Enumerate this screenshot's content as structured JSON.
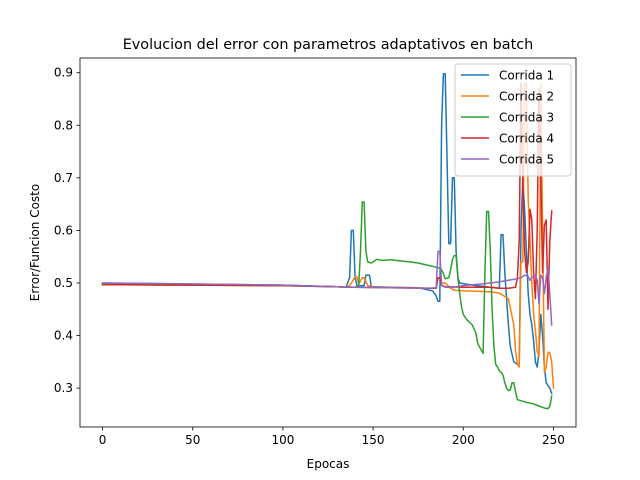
{
  "chart_data": {
    "type": "line",
    "title": "Evolucion del error con parametros adaptativos en batch",
    "xlabel": "Epocas",
    "ylabel": "Error/Funcion Costo",
    "xlim": [
      -12.5,
      262.5
    ],
    "ylim": [
      0.226,
      0.928
    ],
    "xticks": [
      0,
      50,
      100,
      150,
      200,
      250
    ],
    "yticks": [
      0.3,
      0.4,
      0.5,
      0.6,
      0.7,
      0.8,
      0.9
    ],
    "grid": false,
    "legend_position": "top-right",
    "series": [
      {
        "name": "Corrida 1",
        "color": "#1f77b4",
        "points": [
          [
            0,
            0.5
          ],
          [
            50,
            0.498
          ],
          [
            100,
            0.496
          ],
          [
            130,
            0.493
          ],
          [
            135,
            0.492
          ],
          [
            137,
            0.51
          ],
          [
            138,
            0.6
          ],
          [
            139,
            0.6
          ],
          [
            140,
            0.51
          ],
          [
            141,
            0.495
          ],
          [
            145,
            0.495
          ],
          [
            146,
            0.515
          ],
          [
            148,
            0.515
          ],
          [
            149,
            0.493
          ],
          [
            160,
            0.492
          ],
          [
            175,
            0.491
          ],
          [
            183,
            0.485
          ],
          [
            185,
            0.475
          ],
          [
            186,
            0.465
          ],
          [
            187,
            0.465
          ],
          [
            188,
            0.8
          ],
          [
            189,
            0.898
          ],
          [
            190,
            0.898
          ],
          [
            191,
            0.74
          ],
          [
            192,
            0.575
          ],
          [
            193,
            0.575
          ],
          [
            194,
            0.7
          ],
          [
            195,
            0.7
          ],
          [
            196,
            0.56
          ],
          [
            197,
            0.51
          ],
          [
            198,
            0.5
          ],
          [
            205,
            0.496
          ],
          [
            215,
            0.492
          ],
          [
            220,
            0.49
          ],
          [
            221,
            0.592
          ],
          [
            222,
            0.592
          ],
          [
            223,
            0.52
          ],
          [
            225,
            0.42
          ],
          [
            226,
            0.38
          ],
          [
            228,
            0.35
          ],
          [
            230,
            0.345
          ],
          [
            231,
            0.345
          ],
          [
            232,
            0.6
          ],
          [
            233,
            0.7
          ],
          [
            234,
            0.64
          ],
          [
            235,
            0.56
          ],
          [
            236,
            0.48
          ],
          [
            237,
            0.44
          ],
          [
            238,
            0.42
          ],
          [
            239,
            0.39
          ],
          [
            240,
            0.35
          ],
          [
            241,
            0.34
          ],
          [
            242,
            0.37
          ],
          [
            243,
            0.44
          ],
          [
            244,
            0.4
          ],
          [
            245,
            0.34
          ],
          [
            246,
            0.31
          ],
          [
            247,
            0.305
          ],
          [
            248,
            0.3
          ],
          [
            249,
            0.29
          ]
        ]
      },
      {
        "name": "Corrida 2",
        "color": "#ff7f0e",
        "points": [
          [
            0,
            0.497
          ],
          [
            50,
            0.496
          ],
          [
            100,
            0.495
          ],
          [
            130,
            0.493
          ],
          [
            136,
            0.492
          ],
          [
            138,
            0.5
          ],
          [
            140,
            0.512
          ],
          [
            141,
            0.512
          ],
          [
            142,
            0.498
          ],
          [
            144,
            0.51
          ],
          [
            145,
            0.51
          ],
          [
            147,
            0.495
          ],
          [
            150,
            0.492
          ],
          [
            170,
            0.491
          ],
          [
            185,
            0.49
          ],
          [
            186,
            0.51
          ],
          [
            187,
            0.51
          ],
          [
            188,
            0.5
          ],
          [
            190,
            0.5
          ],
          [
            193,
            0.49
          ],
          [
            195,
            0.486
          ],
          [
            200,
            0.485
          ],
          [
            210,
            0.484
          ],
          [
            215,
            0.483
          ],
          [
            220,
            0.481
          ],
          [
            225,
            0.47
          ],
          [
            228,
            0.42
          ],
          [
            229,
            0.37
          ],
          [
            230,
            0.345
          ],
          [
            231,
            0.34
          ],
          [
            232,
            0.54
          ],
          [
            233,
            0.54
          ],
          [
            234,
            0.88
          ],
          [
            235,
            0.88
          ],
          [
            236,
            0.66
          ],
          [
            237,
            0.58
          ],
          [
            238,
            0.5
          ],
          [
            239,
            0.44
          ],
          [
            240,
            0.41
          ],
          [
            241,
            0.37
          ],
          [
            242,
            0.36
          ],
          [
            243,
            0.88
          ],
          [
            244,
            0.6
          ],
          [
            245,
            0.33
          ],
          [
            246,
            0.34
          ],
          [
            247,
            0.368
          ],
          [
            248,
            0.368
          ],
          [
            249,
            0.35
          ],
          [
            250,
            0.3
          ]
        ]
      },
      {
        "name": "Corrida 3",
        "color": "#2ca02c",
        "points": [
          [
            0,
            0.497
          ],
          [
            50,
            0.496
          ],
          [
            100,
            0.495
          ],
          [
            130,
            0.493
          ],
          [
            138,
            0.492
          ],
          [
            140,
            0.492
          ],
          [
            142,
            0.495
          ],
          [
            143,
            0.56
          ],
          [
            144,
            0.654
          ],
          [
            145,
            0.654
          ],
          [
            146,
            0.56
          ],
          [
            147,
            0.54
          ],
          [
            149,
            0.538
          ],
          [
            150,
            0.54
          ],
          [
            152,
            0.545
          ],
          [
            155,
            0.543
          ],
          [
            160,
            0.544
          ],
          [
            165,
            0.542
          ],
          [
            170,
            0.54
          ],
          [
            175,
            0.538
          ],
          [
            180,
            0.534
          ],
          [
            185,
            0.53
          ],
          [
            187,
            0.528
          ],
          [
            188,
            0.525
          ],
          [
            189,
            0.518
          ],
          [
            190,
            0.508
          ],
          [
            192,
            0.51
          ],
          [
            193,
            0.525
          ],
          [
            194,
            0.545
          ],
          [
            195,
            0.552
          ],
          [
            196,
            0.552
          ],
          [
            197,
            0.51
          ],
          [
            198,
            0.48
          ],
          [
            199,
            0.455
          ],
          [
            200,
            0.44
          ],
          [
            202,
            0.43
          ],
          [
            205,
            0.42
          ],
          [
            207,
            0.405
          ],
          [
            208,
            0.385
          ],
          [
            210,
            0.372
          ],
          [
            211,
            0.366
          ],
          [
            212,
            0.52
          ],
          [
            213,
            0.636
          ],
          [
            214,
            0.636
          ],
          [
            215,
            0.56
          ],
          [
            216,
            0.45
          ],
          [
            217,
            0.38
          ],
          [
            218,
            0.345
          ],
          [
            219,
            0.34
          ],
          [
            220,
            0.333
          ],
          [
            221,
            0.33
          ],
          [
            222,
            0.325
          ],
          [
            223,
            0.31
          ],
          [
            224,
            0.3
          ],
          [
            225,
            0.295
          ],
          [
            226,
            0.296
          ],
          [
            227,
            0.31
          ],
          [
            228,
            0.31
          ],
          [
            229,
            0.292
          ],
          [
            230,
            0.278
          ],
          [
            233,
            0.275
          ],
          [
            236,
            0.272
          ],
          [
            239,
            0.27
          ],
          [
            242,
            0.266
          ],
          [
            245,
            0.262
          ],
          [
            247,
            0.261
          ],
          [
            248,
            0.265
          ],
          [
            249,
            0.285
          ]
        ]
      },
      {
        "name": "Corrida 4",
        "color": "#d62728",
        "points": [
          [
            0,
            0.497
          ],
          [
            50,
            0.496
          ],
          [
            100,
            0.495
          ],
          [
            130,
            0.493
          ],
          [
            140,
            0.492
          ],
          [
            160,
            0.491
          ],
          [
            180,
            0.49
          ],
          [
            185,
            0.49
          ],
          [
            186,
            0.51
          ],
          [
            187,
            0.51
          ],
          [
            188,
            0.495
          ],
          [
            190,
            0.493
          ],
          [
            200,
            0.492
          ],
          [
            210,
            0.492
          ],
          [
            215,
            0.492
          ],
          [
            220,
            0.49
          ],
          [
            225,
            0.49
          ],
          [
            229,
            0.492
          ],
          [
            230,
            0.51
          ],
          [
            231,
            0.58
          ],
          [
            232,
            0.88
          ],
          [
            233,
            0.7
          ],
          [
            234,
            0.56
          ],
          [
            235,
            0.52
          ],
          [
            236,
            0.54
          ],
          [
            237,
            0.64
          ],
          [
            238,
            0.62
          ],
          [
            239,
            0.52
          ],
          [
            240,
            0.47
          ],
          [
            241,
            0.6
          ],
          [
            242,
            0.87
          ],
          [
            243,
            0.7
          ],
          [
            244,
            0.52
          ],
          [
            245,
            0.61
          ],
          [
            246,
            0.62
          ],
          [
            247,
            0.45
          ],
          [
            248,
            0.58
          ],
          [
            249,
            0.637
          ]
        ]
      },
      {
        "name": "Corrida 5",
        "color": "#9467bd",
        "points": [
          [
            0,
            0.5
          ],
          [
            50,
            0.498
          ],
          [
            100,
            0.496
          ],
          [
            130,
            0.493
          ],
          [
            140,
            0.492
          ],
          [
            160,
            0.491
          ],
          [
            180,
            0.49
          ],
          [
            185,
            0.491
          ],
          [
            186,
            0.56
          ],
          [
            187,
            0.56
          ],
          [
            188,
            0.495
          ],
          [
            190,
            0.492
          ],
          [
            195,
            0.492
          ],
          [
            200,
            0.495
          ],
          [
            210,
            0.498
          ],
          [
            215,
            0.5
          ],
          [
            220,
            0.502
          ],
          [
            225,
            0.505
          ],
          [
            230,
            0.508
          ],
          [
            232,
            0.51
          ],
          [
            234,
            0.515
          ],
          [
            236,
            0.512
          ],
          [
            237,
            0.505
          ],
          [
            238,
            0.51
          ],
          [
            240,
            0.515
          ],
          [
            241,
            0.505
          ],
          [
            242,
            0.46
          ],
          [
            243,
            0.515
          ],
          [
            244,
            0.51
          ],
          [
            245,
            0.48
          ],
          [
            246,
            0.51
          ],
          [
            247,
            0.53
          ],
          [
            248,
            0.48
          ],
          [
            249,
            0.42
          ]
        ]
      }
    ]
  }
}
